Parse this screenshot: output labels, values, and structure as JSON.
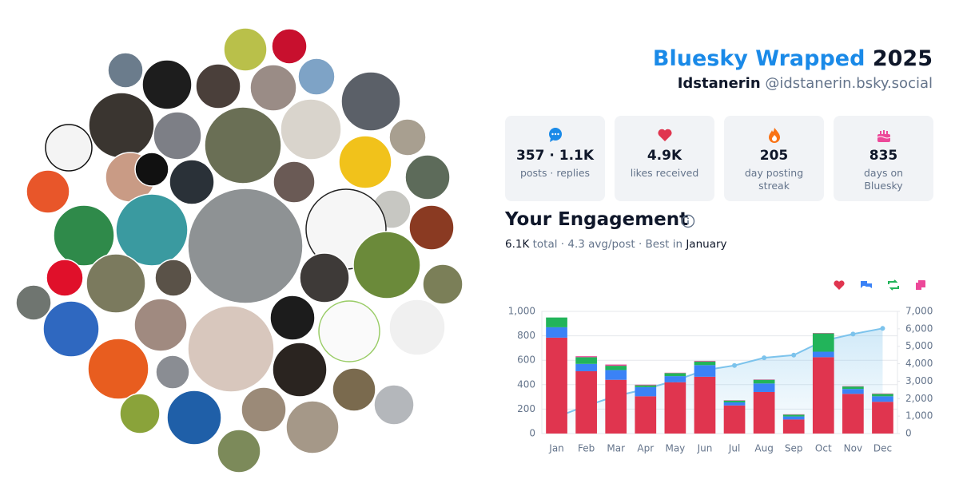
{
  "header": {
    "title": "Bluesky Wrapped",
    "year": "2025",
    "display_name": "Idstanerin",
    "handle": "@idstanerin.bsky.social"
  },
  "stats": [
    {
      "value": "357 · 1.1K",
      "label": "posts · replies"
    },
    {
      "value": "4.9K",
      "label": "likes received"
    },
    {
      "value": "205",
      "label": "day posting streak"
    },
    {
      "value": "835",
      "label": "days on Bluesky"
    }
  ],
  "engagement": {
    "title": "Your Engagement",
    "total": "6.1K",
    "middle": " total · 4.3 avg/post · Best in ",
    "best": "January"
  },
  "chart_data": {
    "type": "bar",
    "stacked": true,
    "grid": true,
    "categories": [
      "Jan",
      "Feb",
      "Mar",
      "Apr",
      "May",
      "Jun",
      "Jul",
      "Aug",
      "Sep",
      "Oct",
      "Nov",
      "Dec"
    ],
    "series": [
      {
        "color": "#e0354f",
        "values": [
          785,
          510,
          440,
          305,
          420,
          465,
          230,
          340,
          115,
          625,
          325,
          260
        ]
      },
      {
        "color": "#3b82f6",
        "values": [
          85,
          60,
          80,
          75,
          50,
          95,
          25,
          70,
          25,
          45,
          40,
          45
        ]
      },
      {
        "color": "#22b45a",
        "values": [
          80,
          55,
          35,
          15,
          25,
          30,
          15,
          30,
          15,
          150,
          20,
          20
        ]
      },
      {
        "color": "#ec4899",
        "values": [
          0,
          8,
          10,
          5,
          3,
          5,
          3,
          3,
          3,
          3,
          3,
          3
        ]
      },
      {
        "type": "line",
        "axis": "y2",
        "color": "#7cc3ec",
        "values": [
          950,
          1585,
          2150,
          2545,
          3040,
          3630,
          3900,
          4340,
          4495,
          5315,
          5700,
          6025
        ]
      }
    ],
    "ylim": [
      0,
      1000
    ],
    "yticks": [
      0,
      200,
      400,
      600,
      800,
      {
        "value": 1000,
        "label": "1,000"
      }
    ],
    "y2lim": [
      0,
      7000
    ],
    "y2ticks": [
      0,
      {
        "value": 1000,
        "label": "1,000"
      },
      {
        "value": 2000,
        "label": "2,000"
      },
      {
        "value": 3000,
        "label": "3,000"
      },
      {
        "value": 4000,
        "label": "4,000"
      },
      {
        "value": 5000,
        "label": "5,000"
      },
      {
        "value": 6000,
        "label": "6,000"
      },
      {
        "value": 7000,
        "label": "7,000"
      }
    ]
  }
}
